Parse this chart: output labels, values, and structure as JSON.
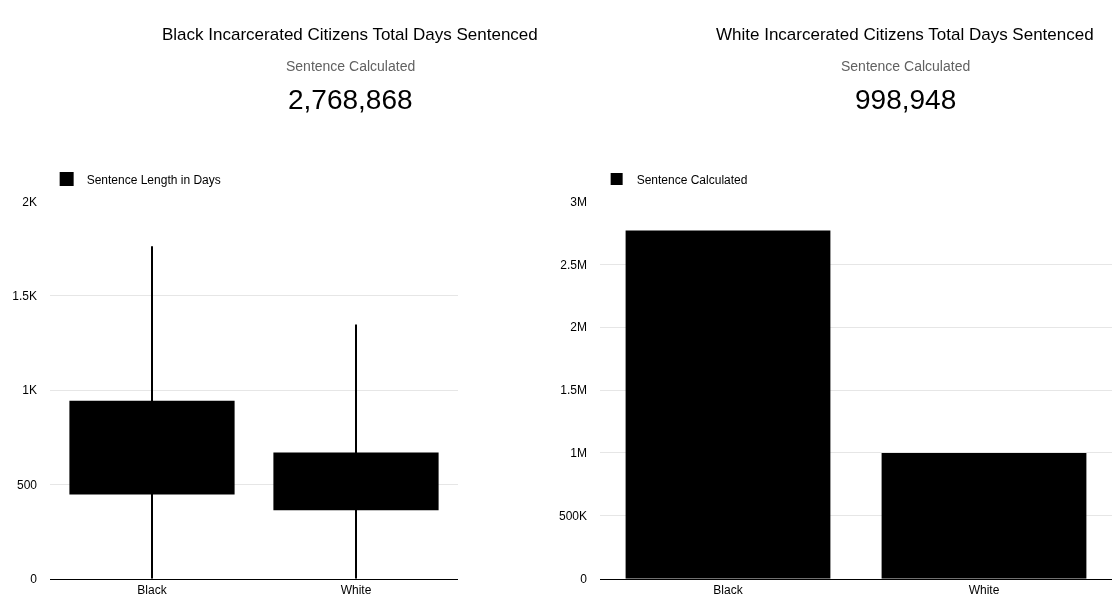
{
  "chart_data": [
    {
      "type": "other",
      "title": "Black Incarcerated Citizens Total Days Sentenced",
      "annotations": [
        "Sentence Calculated",
        "2,768,868"
      ]
    },
    {
      "type": "other",
      "title": "White Incarcerated Citizens Total Days Sentenced",
      "annotations": [
        "Sentence Calculated",
        "998,948"
      ]
    },
    {
      "type": "box",
      "categories": [
        "Black",
        "White"
      ],
      "series": [
        {
          "name": "Sentence Length in Days",
          "color": "#000000",
          "boxes": [
            {
              "low": 0,
              "q1": 451,
              "median": null,
              "q3": 938,
              "high": 1762
            },
            {
              "low": 0,
              "q1": 368,
              "median": null,
              "q3": 663,
              "high": 1347
            }
          ]
        }
      ],
      "ylim": [
        0,
        2000
      ],
      "yticks": [
        0,
        500,
        {
          "value": 1000,
          "label": "1K"
        },
        {
          "value": 1500,
          "label": "1.5K"
        },
        {
          "value": 2000,
          "label": "2K"
        }
      ],
      "grid": "y",
      "legend": "top left"
    },
    {
      "type": "bar",
      "categories": [
        "Black",
        "White"
      ],
      "series": [
        {
          "name": "Sentence Calculated",
          "color": "#000000",
          "values": [
            2768868,
            998948
          ]
        }
      ],
      "ylim": [
        0,
        3000000
      ],
      "yticks": [
        0,
        {
          "value": 500000,
          "label": "500K"
        },
        {
          "value": 1000000,
          "label": "1M"
        },
        {
          "value": 1500000,
          "label": "1.5M"
        },
        {
          "value": 2000000,
          "label": "2M"
        },
        {
          "value": 2500000,
          "label": "2.5M"
        },
        {
          "value": 3000000,
          "label": "3M"
        }
      ],
      "grid": "y",
      "legend": "top left"
    }
  ]
}
